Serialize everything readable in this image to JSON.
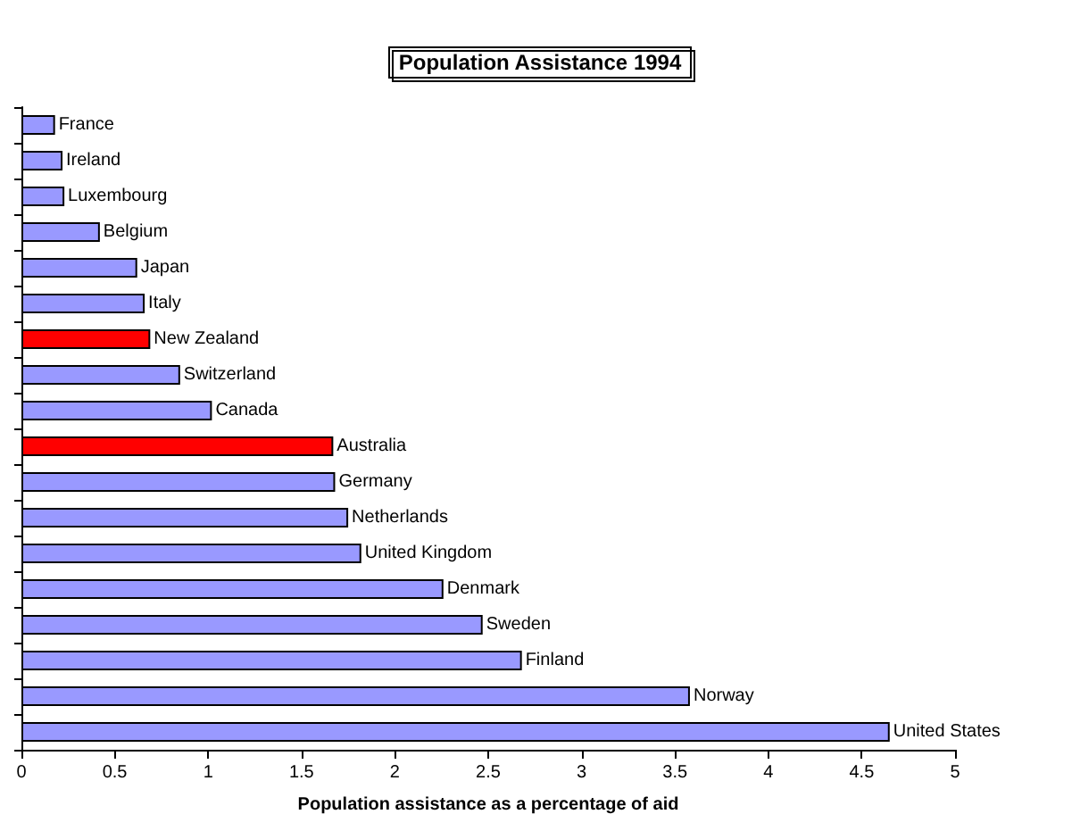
{
  "chart_data": {
    "type": "bar",
    "orientation": "horizontal",
    "title": "Population Assistance 1994",
    "xlabel": "Population assistance as a percentage of aid",
    "categories": [
      "France",
      "Ireland",
      "Luxembourg",
      "Belgium",
      "Japan",
      "Italy",
      "New Zealand",
      "Switzerland",
      "Canada",
      "Australia",
      "Germany",
      "Netherlands",
      "United Kingdom",
      "Denmark",
      "Sweden",
      "Finland",
      "Norway",
      "United States"
    ],
    "values": [
      0.18,
      0.22,
      0.23,
      0.42,
      0.62,
      0.66,
      0.69,
      0.85,
      1.02,
      1.67,
      1.68,
      1.75,
      1.82,
      2.26,
      2.47,
      2.68,
      3.58,
      4.65
    ],
    "colors": [
      "#9999ff",
      "#9999ff",
      "#9999ff",
      "#9999ff",
      "#9999ff",
      "#9999ff",
      "#ff0000",
      "#9999ff",
      "#9999ff",
      "#ff0000",
      "#9999ff",
      "#9999ff",
      "#9999ff",
      "#9999ff",
      "#9999ff",
      "#9999ff",
      "#9999ff",
      "#9999ff"
    ],
    "xlim": [
      0,
      5
    ],
    "xticks": [
      0,
      0.5,
      1,
      1.5,
      2,
      2.5,
      3,
      3.5,
      4,
      4.5,
      5
    ]
  }
}
